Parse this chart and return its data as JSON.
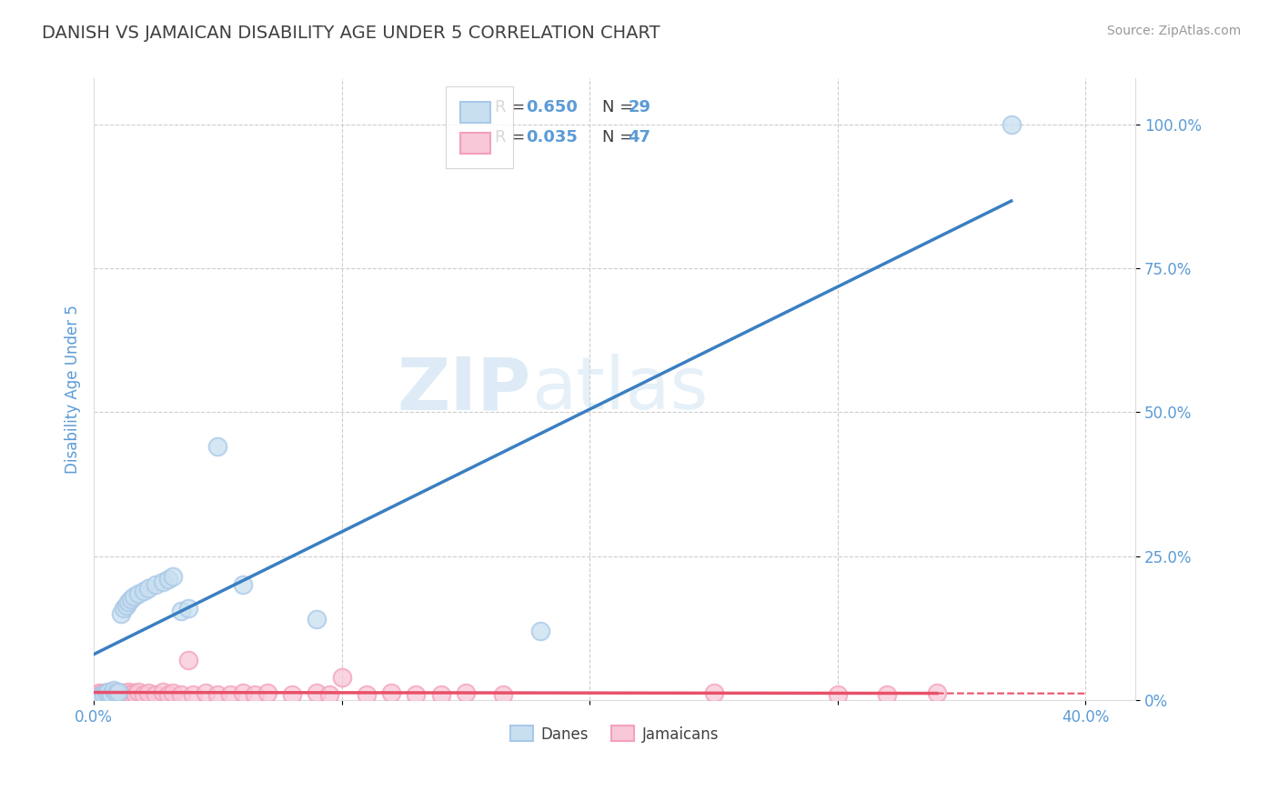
{
  "title": "DANISH VS JAMAICAN DISABILITY AGE UNDER 5 CORRELATION CHART",
  "source": "Source: ZipAtlas.com",
  "ylabel": "Disability Age Under 5",
  "xlim": [
    0.0,
    0.42
  ],
  "ylim": [
    0.0,
    1.08
  ],
  "danes_R": 0.65,
  "danes_N": 29,
  "jamaicans_R": 0.035,
  "jamaicans_N": 47,
  "danes_color": "#a8c8e8",
  "danes_fill_color": "#c8dff0",
  "jamaicans_color": "#f4a0b8",
  "jamaicans_fill_color": "#f8c8d8",
  "danes_line_color": "#3a7fc1",
  "jamaicans_line_color": "#e8506a",
  "danes_x": [
    0.002,
    0.003,
    0.004,
    0.005,
    0.006,
    0.007,
    0.008,
    0.009,
    0.01,
    0.011,
    0.012,
    0.013,
    0.014,
    0.015,
    0.016,
    0.018,
    0.02,
    0.022,
    0.025,
    0.028,
    0.03,
    0.032,
    0.035,
    0.038,
    0.05,
    0.06,
    0.09,
    0.18,
    0.37
  ],
  "danes_y": [
    0.005,
    0.008,
    0.01,
    0.012,
    0.015,
    0.01,
    0.018,
    0.012,
    0.015,
    0.15,
    0.16,
    0.165,
    0.17,
    0.175,
    0.18,
    0.185,
    0.19,
    0.195,
    0.2,
    0.205,
    0.21,
    0.215,
    0.155,
    0.16,
    0.44,
    0.2,
    0.14,
    0.12,
    1.0
  ],
  "jamaicans_x": [
    0.001,
    0.002,
    0.003,
    0.004,
    0.005,
    0.006,
    0.007,
    0.008,
    0.009,
    0.01,
    0.011,
    0.012,
    0.013,
    0.014,
    0.015,
    0.016,
    0.017,
    0.018,
    0.02,
    0.022,
    0.025,
    0.028,
    0.03,
    0.032,
    0.035,
    0.038,
    0.04,
    0.045,
    0.05,
    0.055,
    0.06,
    0.065,
    0.07,
    0.08,
    0.09,
    0.095,
    0.1,
    0.11,
    0.12,
    0.13,
    0.14,
    0.15,
    0.165,
    0.25,
    0.3,
    0.32,
    0.34
  ],
  "jamaicans_y": [
    0.01,
    0.012,
    0.01,
    0.012,
    0.01,
    0.012,
    0.01,
    0.015,
    0.01,
    0.012,
    0.01,
    0.012,
    0.01,
    0.015,
    0.01,
    0.012,
    0.01,
    0.015,
    0.01,
    0.012,
    0.01,
    0.015,
    0.01,
    0.012,
    0.01,
    0.07,
    0.01,
    0.012,
    0.01,
    0.01,
    0.012,
    0.01,
    0.012,
    0.01,
    0.012,
    0.01,
    0.04,
    0.01,
    0.012,
    0.01,
    0.01,
    0.012,
    0.01,
    0.012,
    0.01,
    0.01,
    0.012
  ],
  "watermark_zip": "ZIP",
  "watermark_atlas": "atlas",
  "background_color": "#ffffff",
  "grid_color": "#c8c8c8",
  "title_color": "#404040",
  "axis_label_color": "#5b9bd5",
  "tick_color": "#5b9bd5",
  "legend_value_color": "#5b9bd5",
  "legend_label_color": "#404040"
}
